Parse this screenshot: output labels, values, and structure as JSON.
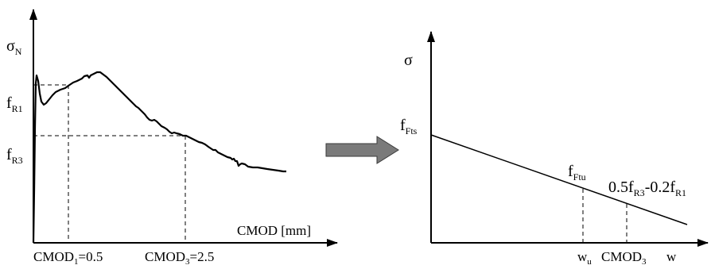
{
  "left_graph": {
    "y_axis": {
      "symbol": "σ",
      "subscript": "N"
    },
    "x_axis_label": "CMOD [mm]",
    "y_levels": [
      {
        "main": "f",
        "sub": "R1"
      },
      {
        "main": "f",
        "sub": "R3"
      }
    ],
    "x_points": [
      {
        "main": "CMOD",
        "sub": "1",
        "rest": "=0.5"
      },
      {
        "main": "CMOD",
        "sub": "3",
        "rest": "=2.5"
      }
    ]
  },
  "arrow": {
    "color": "#7a7a7a",
    "direction": "right"
  },
  "right_graph": {
    "y_axis": {
      "symbol": "σ"
    },
    "f_fts": {
      "main": "f",
      "sub": "Fts"
    },
    "f_ftu": {
      "main": "f",
      "sub": "Ftu"
    },
    "formula": {
      "a": "0.5f",
      "a_sub": "R3",
      "b": "-0.2f",
      "b_sub": "R1"
    },
    "x_labels": {
      "wu": {
        "main": "w",
        "sub": "u"
      },
      "cmod3": {
        "main": "CMOD",
        "sub": "3"
      },
      "w": "w"
    }
  }
}
